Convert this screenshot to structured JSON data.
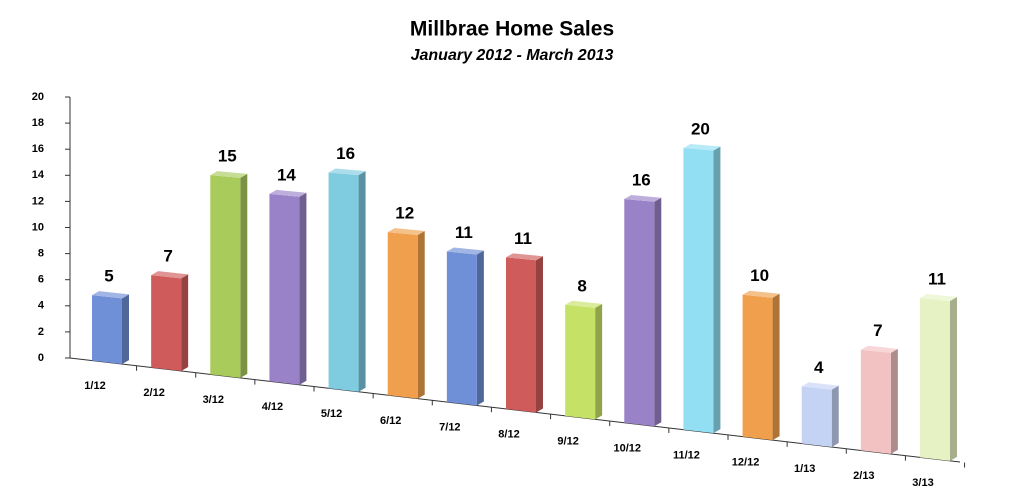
{
  "chart_data": {
    "type": "bar3d",
    "title": "Millbrae Home Sales",
    "subtitle": "January 2012 - March 2013",
    "categories": [
      "1/12",
      "2/12",
      "3/12",
      "4/12",
      "5/12",
      "6/12",
      "7/12",
      "8/12",
      "9/12",
      "10/12",
      "11/12",
      "12/12",
      "1/13",
      "2/13",
      "3/13"
    ],
    "values": [
      5,
      7,
      15,
      14,
      16,
      12,
      11,
      11,
      8,
      16,
      20,
      10,
      4,
      7,
      11
    ],
    "colors": [
      "#6f8fd6",
      "#cf5c5a",
      "#a9cb5c",
      "#9a82c8",
      "#7fcbe0",
      "#f0a04c",
      "#6f8fd6",
      "#cf5c5a",
      "#c6e266",
      "#9a82c8",
      "#92def2",
      "#f0a04c",
      "#c4d2f4",
      "#f2c2c2",
      "#e6f2c4"
    ],
    "ylim": [
      0,
      20
    ],
    "yticks": [
      0,
      2,
      4,
      6,
      8,
      10,
      12,
      14,
      16,
      18,
      20
    ]
  }
}
